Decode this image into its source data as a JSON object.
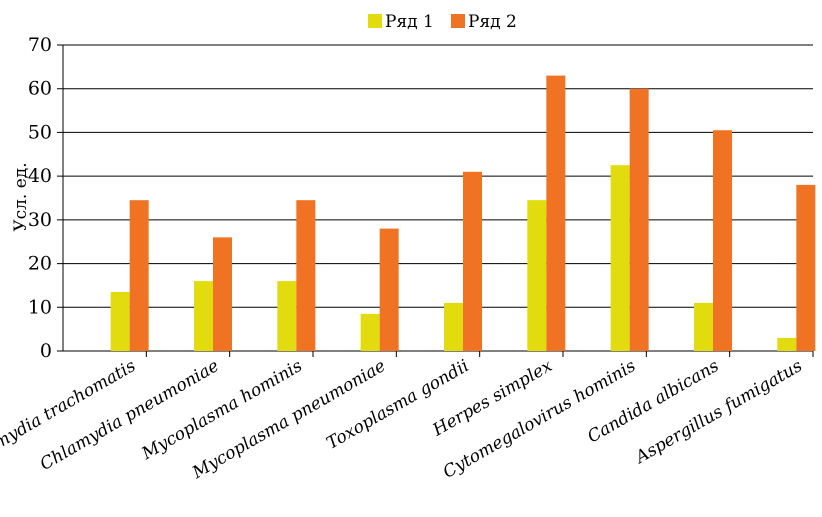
{
  "chart_data": {
    "type": "bar",
    "title": "",
    "xlabel": "",
    "ylabel": "Усл. ед.",
    "ylim": [
      0,
      70
    ],
    "yticks": [
      0,
      10,
      20,
      30,
      40,
      50,
      60,
      70
    ],
    "grid": true,
    "legend": "top-center",
    "categories": [
      "Chlamydia trachomatis",
      "Chlamydia pneumoniae",
      "Mycoplasma hominis",
      "Mycoplasma pneumoniae",
      "Toxoplasma gondii",
      "Herpes simplex",
      "Cytomegalovirus hominis",
      "Candida albicans",
      "Aspergillus fumigatus"
    ],
    "series": [
      {
        "name": "Ряд 1",
        "color": "#e2dc0e",
        "values": [
          13.5,
          16,
          16,
          8.5,
          11,
          34.5,
          42.5,
          11,
          3
        ]
      },
      {
        "name": "Ряд 2",
        "color": "#f07323",
        "values": [
          34.5,
          26,
          34.5,
          28,
          41,
          63,
          60,
          50.5,
          38
        ]
      }
    ]
  }
}
